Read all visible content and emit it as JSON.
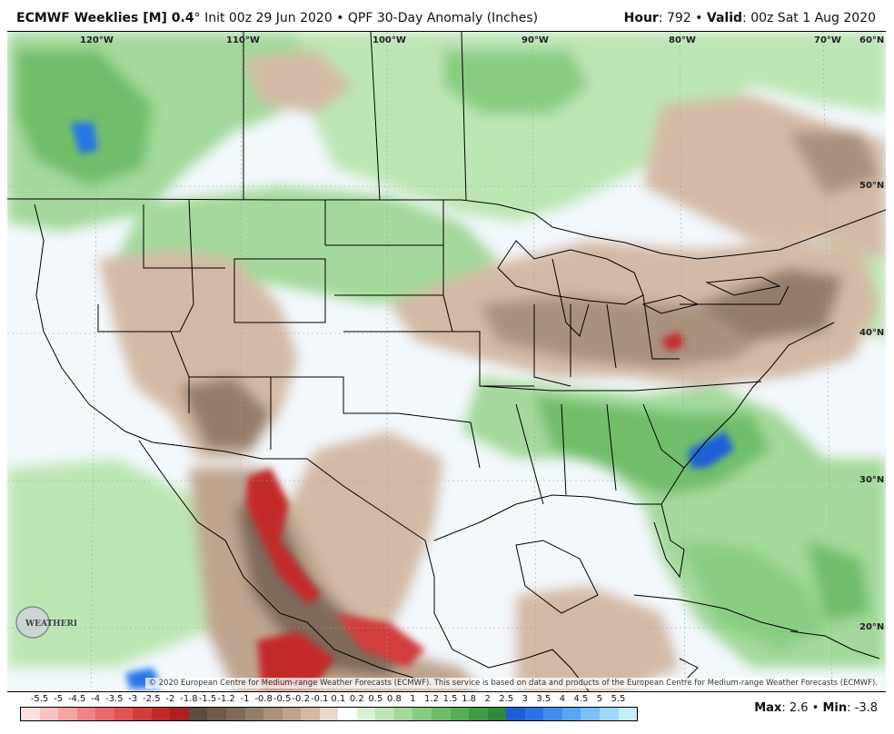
{
  "header": {
    "model": "ECMWF Weeklies [M] 0.4",
    "degree": "°",
    "init": "Init 00z 29 Jun 2020",
    "bullet": "•",
    "product": "QPF 30-Day Anomaly (Inches)",
    "hour_label": "Hour",
    "hour_value": ": 792",
    "valid_label": "Valid",
    "valid_value": ": 00z Sat 1 Aug 2020"
  },
  "map": {
    "longitude_labels": [
      "120°W",
      "110°W",
      "100°W",
      "90°W",
      "80°W",
      "70°W"
    ],
    "latitude_labels": [
      "60°N",
      "50°N",
      "40°N",
      "30°N",
      "20°N"
    ],
    "credit": "© 2020 European Centre for Medium-range Weather Forecasts (ECMWF). This service is based on data and products of the European Centre for Medium-range Weather Forecasts (ECMWF).",
    "logo_text": "WEATHERBELL"
  },
  "legend": {
    "ticks": [
      "-5.5",
      "-5",
      "-4.5",
      "-4",
      "-3.5",
      "-3",
      "-2.5",
      "-2",
      "-1.8",
      "-1.5",
      "-1.2",
      "-1",
      "-0.8",
      "-0.5",
      "-0.2",
      "-0.1",
      "0.1",
      "0.2",
      "0.5",
      "0.8",
      "1",
      "1.2",
      "1.5",
      "1.8",
      "2",
      "2.5",
      "3",
      "3.5",
      "4",
      "4.5",
      "5",
      "5.5"
    ],
    "colors": [
      "#fde0e0",
      "#fbc4c4",
      "#f6a3a3",
      "#f08585",
      "#e96a6a",
      "#e05454",
      "#d23d3d",
      "#c22a2a",
      "#ae1f1f",
      "#5e4c40",
      "#6e5b4d",
      "#806b5b",
      "#937d6b",
      "#a8917d",
      "#bea48f",
      "#d2b9a5",
      "#e8d8cb",
      "#ffffff",
      "#d9f0d3",
      "#bde5b4",
      "#a3d99a",
      "#88cc82",
      "#6fbd6a",
      "#58ad57",
      "#429a47",
      "#2f8a39",
      "#1d5fd6",
      "#2874e6",
      "#3f8ef0",
      "#5aa6f5",
      "#7cc0f8",
      "#a0d8fb",
      "#c4eefe"
    ]
  },
  "maxmin": {
    "max_label": "Max",
    "max_value": ": 2.6",
    "bullet": "•",
    "min_label": "Min",
    "min_value": ": -3.8"
  }
}
